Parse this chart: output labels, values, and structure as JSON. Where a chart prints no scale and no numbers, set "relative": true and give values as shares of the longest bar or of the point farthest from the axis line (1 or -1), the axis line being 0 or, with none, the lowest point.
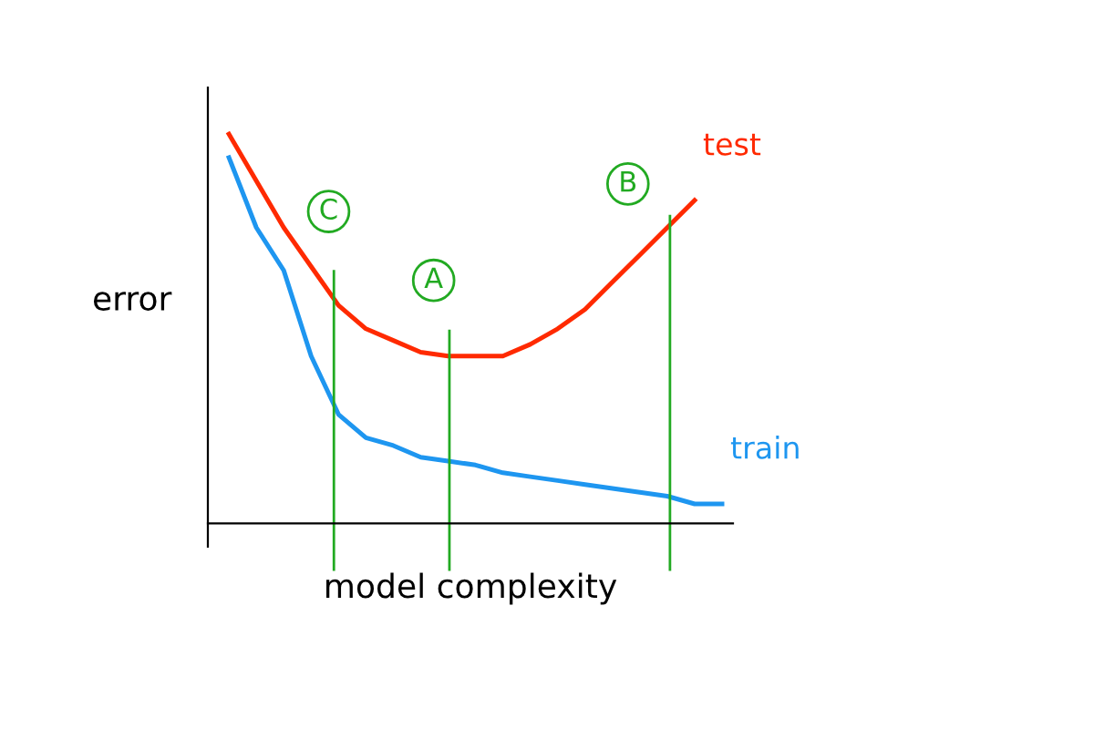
{
  "chart_data": {
    "type": "line",
    "relative": true,
    "xlabel": "model complexity",
    "ylabel": "error",
    "legend": false,
    "marker": "none",
    "line_style": "solid",
    "categories": [
      null,
      null,
      null,
      null,
      null,
      null,
      null,
      null,
      null,
      null,
      null,
      null,
      null,
      null,
      null,
      null,
      null,
      null,
      null
    ],
    "series": [
      {
        "name": "test",
        "color": "#ff2a00",
        "values": [
          1.0,
          0.88,
          0.76,
          0.66,
          0.56,
          0.5,
          0.47,
          0.44,
          0.43,
          0.43,
          0.43,
          0.46,
          0.5,
          0.55,
          0.62,
          0.69,
          0.76,
          0.83,
          null
        ]
      },
      {
        "name": "train",
        "color": "#1e96f0",
        "values": [
          0.94,
          0.76,
          0.65,
          0.43,
          0.28,
          0.22,
          0.2,
          0.17,
          0.16,
          0.15,
          0.13,
          0.12,
          0.11,
          0.1,
          0.09,
          0.08,
          0.07,
          0.05,
          0.05
        ]
      }
    ],
    "annotations": [
      "C",
      "A",
      "B"
    ]
  }
}
